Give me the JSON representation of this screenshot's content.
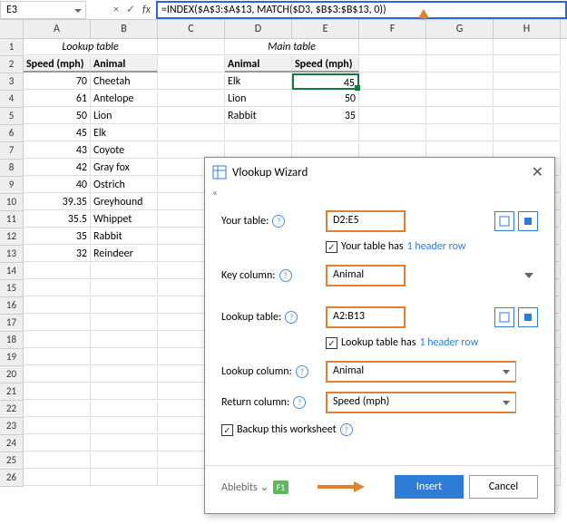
{
  "nameBox": "E3",
  "formula": "=INDEX($A$3:$A$13, MATCH($D3, $B$3:$B$13, 0))",
  "columns": [
    "A",
    "B",
    "C",
    "D",
    "E",
    "F",
    "G",
    "H"
  ],
  "lookupTitle": "Lookup table",
  "mainTitle": "Main table",
  "head": {
    "speed": "Speed (mph)",
    "animal": "Animal"
  },
  "mainHead": {
    "animal": "Animal",
    "speed": "Speed (mph)"
  },
  "lookup": [
    {
      "s": "70",
      "a": "Cheetah"
    },
    {
      "s": "61",
      "a": "Antelope"
    },
    {
      "s": "50",
      "a": "Lion"
    },
    {
      "s": "45",
      "a": "Elk"
    },
    {
      "s": "43",
      "a": "Coyote"
    },
    {
      "s": "42",
      "a": "Gray fox"
    },
    {
      "s": "40",
      "a": "Ostrich"
    },
    {
      "s": "39.35",
      "a": "Greyhound"
    },
    {
      "s": "35.5",
      "a": "Whippet"
    },
    {
      "s": "35",
      "a": "Rabbit"
    },
    {
      "s": "32",
      "a": "Reindeer"
    }
  ],
  "main": [
    {
      "a": "Elk",
      "s": "45"
    },
    {
      "a": "Lion",
      "s": "50"
    },
    {
      "a": "Rabbit",
      "s": "35"
    }
  ],
  "dialog": {
    "title": "Vlookup Wizard",
    "yourTableLabel": "Your table:",
    "yourTableVal": "D2:E5",
    "yourTableHas": "Your table has",
    "headerRow": "1 header row",
    "keyColLabel": "Key column:",
    "keyColVal": "Animal",
    "lookupTableLabel": "Lookup table:",
    "lookupTableVal": "A2:B13",
    "lookupTableHas": "Lookup table has",
    "lookupColLabel": "Lookup column:",
    "lookupColVal": "Animal",
    "returnColLabel": "Return column:",
    "returnColVal": "Speed (mph)",
    "backup": "Backup this worksheet",
    "ablebits": "Ablebits",
    "f1": "F1",
    "insert": "Insert",
    "cancel": "Cancel"
  },
  "colors": {
    "orange": "#e08030",
    "blue": "#2f7cd6",
    "green": "#0a7d3e"
  }
}
